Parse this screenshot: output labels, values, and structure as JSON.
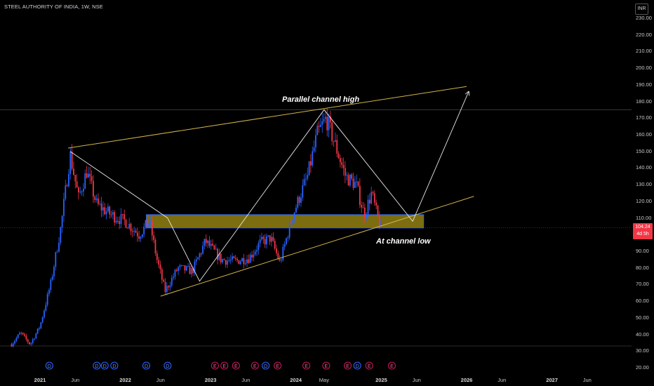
{
  "header": {
    "title": "STEEL AUTHORITY OF INDIA, 1W, NSE",
    "currency": "INR"
  },
  "price": {
    "value": "104.24",
    "countdown": "4d 5h"
  },
  "annotations": {
    "high": "Parallel channel high",
    "low": "At channel low"
  },
  "colors": {
    "up": "#2962ff",
    "down": "#f23645",
    "channel": "#d4b44a",
    "zone_fill": "#8a7a12",
    "zone_border": "#2962ff",
    "path": "#e8e8e8"
  },
  "chart_data": {
    "type": "candlestick",
    "title": "STEEL AUTHORITY OF INDIA, 1W, NSE",
    "ylim": [
      20,
      236
    ],
    "y_ticks": [
      "230.00",
      "220.00",
      "210.00",
      "200.00",
      "190.00",
      "180.00",
      "170.00",
      "160.00",
      "150.00",
      "140.00",
      "130.00",
      "120.00",
      "110.00",
      "100.00",
      "90.00",
      "80.00",
      "70.00",
      "60.00",
      "50.00",
      "40.00",
      "30.00",
      "20.00"
    ],
    "x_ticks": [
      {
        "label": "2021",
        "date": "2021-01-01",
        "year": true
      },
      {
        "label": "Jun",
        "date": "2021-06-01"
      },
      {
        "label": "2022",
        "date": "2022-01-01",
        "year": true
      },
      {
        "label": "Jun",
        "date": "2022-06-01"
      },
      {
        "label": "2023",
        "date": "2023-01-01",
        "year": true
      },
      {
        "label": "Jun",
        "date": "2023-06-01"
      },
      {
        "label": "2024",
        "date": "2024-01-01",
        "year": true
      },
      {
        "label": "May",
        "date": "2024-05-01"
      },
      {
        "label": "2025",
        "date": "2025-01-01",
        "year": true
      },
      {
        "label": "Jun",
        "date": "2025-06-01"
      },
      {
        "label": "2026",
        "date": "2026-01-01",
        "year": true
      },
      {
        "label": "Jun",
        "date": "2026-06-01"
      },
      {
        "label": "2027",
        "date": "2027-01-01",
        "year": true
      },
      {
        "label": "Jun",
        "date": "2027-06-01"
      }
    ],
    "price_path": [
      {
        "date": "2020-09-01",
        "close": 34
      },
      {
        "date": "2020-10-10",
        "close": 41
      },
      {
        "date": "2020-11-20",
        "close": 34
      },
      {
        "date": "2021-01-01",
        "close": 45
      },
      {
        "date": "2021-02-15",
        "close": 70
      },
      {
        "date": "2021-04-01",
        "close": 105
      },
      {
        "date": "2021-05-10",
        "close": 148
      },
      {
        "date": "2021-06-15",
        "close": 122
      },
      {
        "date": "2021-07-20",
        "close": 138
      },
      {
        "date": "2021-09-01",
        "close": 118
      },
      {
        "date": "2021-11-01",
        "close": 112
      },
      {
        "date": "2022-01-01",
        "close": 108
      },
      {
        "date": "2022-03-01",
        "close": 100
      },
      {
        "date": "2022-04-15",
        "close": 108
      },
      {
        "date": "2022-05-15",
        "close": 86
      },
      {
        "date": "2022-06-20",
        "close": 66
      },
      {
        "date": "2022-08-15",
        "close": 80
      },
      {
        "date": "2022-10-15",
        "close": 78
      },
      {
        "date": "2022-12-10",
        "close": 96
      },
      {
        "date": "2023-02-15",
        "close": 85
      },
      {
        "date": "2023-04-15",
        "close": 84
      },
      {
        "date": "2023-06-15",
        "close": 86
      },
      {
        "date": "2023-08-01",
        "close": 95
      },
      {
        "date": "2023-09-15",
        "close": 98
      },
      {
        "date": "2023-10-25",
        "close": 83
      },
      {
        "date": "2023-12-15",
        "close": 110
      },
      {
        "date": "2024-01-15",
        "close": 122
      },
      {
        "date": "2024-02-20",
        "close": 135
      },
      {
        "date": "2024-04-01",
        "close": 160
      },
      {
        "date": "2024-05-10",
        "close": 170
      },
      {
        "date": "2024-06-15",
        "close": 155
      },
      {
        "date": "2024-08-01",
        "close": 135
      },
      {
        "date": "2024-09-15",
        "close": 130
      },
      {
        "date": "2024-10-20",
        "close": 112
      },
      {
        "date": "2024-11-20",
        "close": 125
      },
      {
        "date": "2024-12-20",
        "close": 108
      },
      {
        "date": "2025-01-03",
        "close": 104.24
      }
    ],
    "channel_upper": [
      {
        "date": "2021-05-01",
        "value": 152
      },
      {
        "date": "2026-01-01",
        "value": 189
      }
    ],
    "channel_lower": [
      {
        "date": "2022-06-01",
        "value": 63
      },
      {
        "date": "2026-02-01",
        "value": 123
      }
    ],
    "zone": {
      "from": "2022-04-01",
      "to": "2025-07-01",
      "low": 104,
      "high": 112
    },
    "horizontal_line": {
      "value": 175
    },
    "current_price_line": {
      "value": 104.24
    },
    "zigzag": [
      {
        "date": "2021-05-10",
        "value": 150
      },
      {
        "date": "2022-07-01",
        "value": 110
      },
      {
        "date": "2022-11-15",
        "value": 72
      },
      {
        "date": "2024-05-01",
        "value": 175
      },
      {
        "date": "2025-05-15",
        "value": 108
      },
      {
        "date": "2026-01-10",
        "value": 186
      }
    ],
    "event_markers": [
      {
        "date": "2021-02-10",
        "label": "D"
      },
      {
        "date": "2021-09-01",
        "label": "D"
      },
      {
        "date": "2021-10-05",
        "label": "D"
      },
      {
        "date": "2021-11-15",
        "label": "D"
      },
      {
        "date": "2022-04-01",
        "label": "D"
      },
      {
        "date": "2022-07-01",
        "label": "D"
      },
      {
        "date": "2023-01-20",
        "label": "E"
      },
      {
        "date": "2023-03-01",
        "label": "E"
      },
      {
        "date": "2023-04-20",
        "label": "E"
      },
      {
        "date": "2023-07-10",
        "label": "E"
      },
      {
        "date": "2023-08-25",
        "label": "D"
      },
      {
        "date": "2023-10-15",
        "label": "E"
      },
      {
        "date": "2024-02-15",
        "label": "E"
      },
      {
        "date": "2024-05-10",
        "label": "E"
      },
      {
        "date": "2024-08-10",
        "label": "E"
      },
      {
        "date": "2024-09-20",
        "label": "D"
      },
      {
        "date": "2024-11-10",
        "label": "E"
      },
      {
        "date": "2025-02-15",
        "label": "E"
      }
    ]
  }
}
